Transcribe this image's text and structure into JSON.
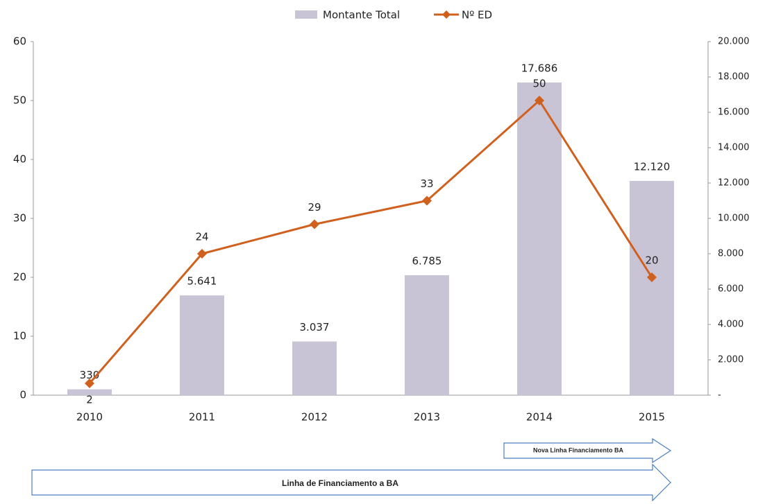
{
  "chart_data": {
    "type": "combo",
    "categories": [
      "2010",
      "2011",
      "2012",
      "2013",
      "2014",
      "2015"
    ],
    "series": [
      {
        "name": "Montante Total",
        "type": "bar",
        "axis": "y2",
        "color": "#c9c3d6",
        "values": [
          330,
          5641,
          3037,
          6785,
          17686,
          12120
        ],
        "value_labels": [
          "330",
          "5.641",
          "3.037",
          "6.785",
          "17.686",
          "12.120"
        ]
      },
      {
        "name": "Nº ED",
        "type": "line",
        "color": "#d0601e",
        "values": [
          2,
          24,
          29,
          33,
          50,
          20
        ]
      }
    ],
    "ylim": [
      0,
      60
    ],
    "yticks": [
      0,
      10,
      20,
      30,
      40,
      50,
      60
    ],
    "y2lim": [
      0,
      20000
    ],
    "y2ticks": [
      {
        "value": 0,
        "label": "-"
      },
      {
        "value": 2000,
        "label": "2.000"
      },
      {
        "value": 4000,
        "label": "4.000"
      },
      {
        "value": 6000,
        "label": "6.000"
      },
      {
        "value": 8000,
        "label": "8.000"
      },
      {
        "value": 10000,
        "label": "10.000"
      },
      {
        "value": 12000,
        "label": "12.000"
      },
      {
        "value": 14000,
        "label": "14.000"
      },
      {
        "value": 16000,
        "label": "16.000"
      },
      {
        "value": 18000,
        "label": "18.000"
      },
      {
        "value": 20000,
        "label": "20.000"
      }
    ],
    "legend": "top",
    "annotations": [
      "Nova Linha Financiamento BA",
      "Linha de Financiamento a BA"
    ]
  }
}
